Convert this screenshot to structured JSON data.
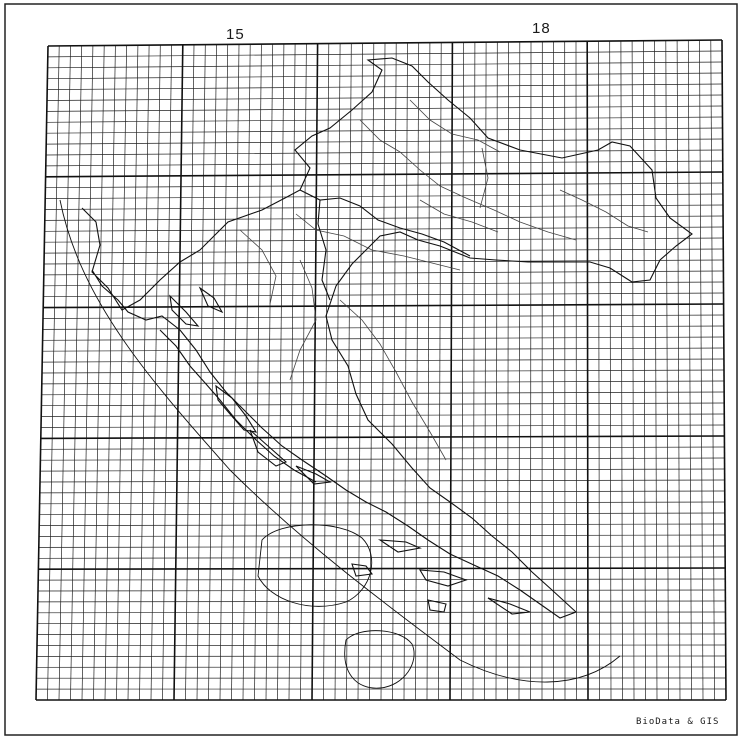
{
  "map": {
    "longitude_labels": [
      "15",
      "18"
    ],
    "credit": "BioData & GIS",
    "colors": {
      "background": "#ffffff",
      "grid": "#222222",
      "coastline": "#111111",
      "rivers": "#444444"
    }
  }
}
